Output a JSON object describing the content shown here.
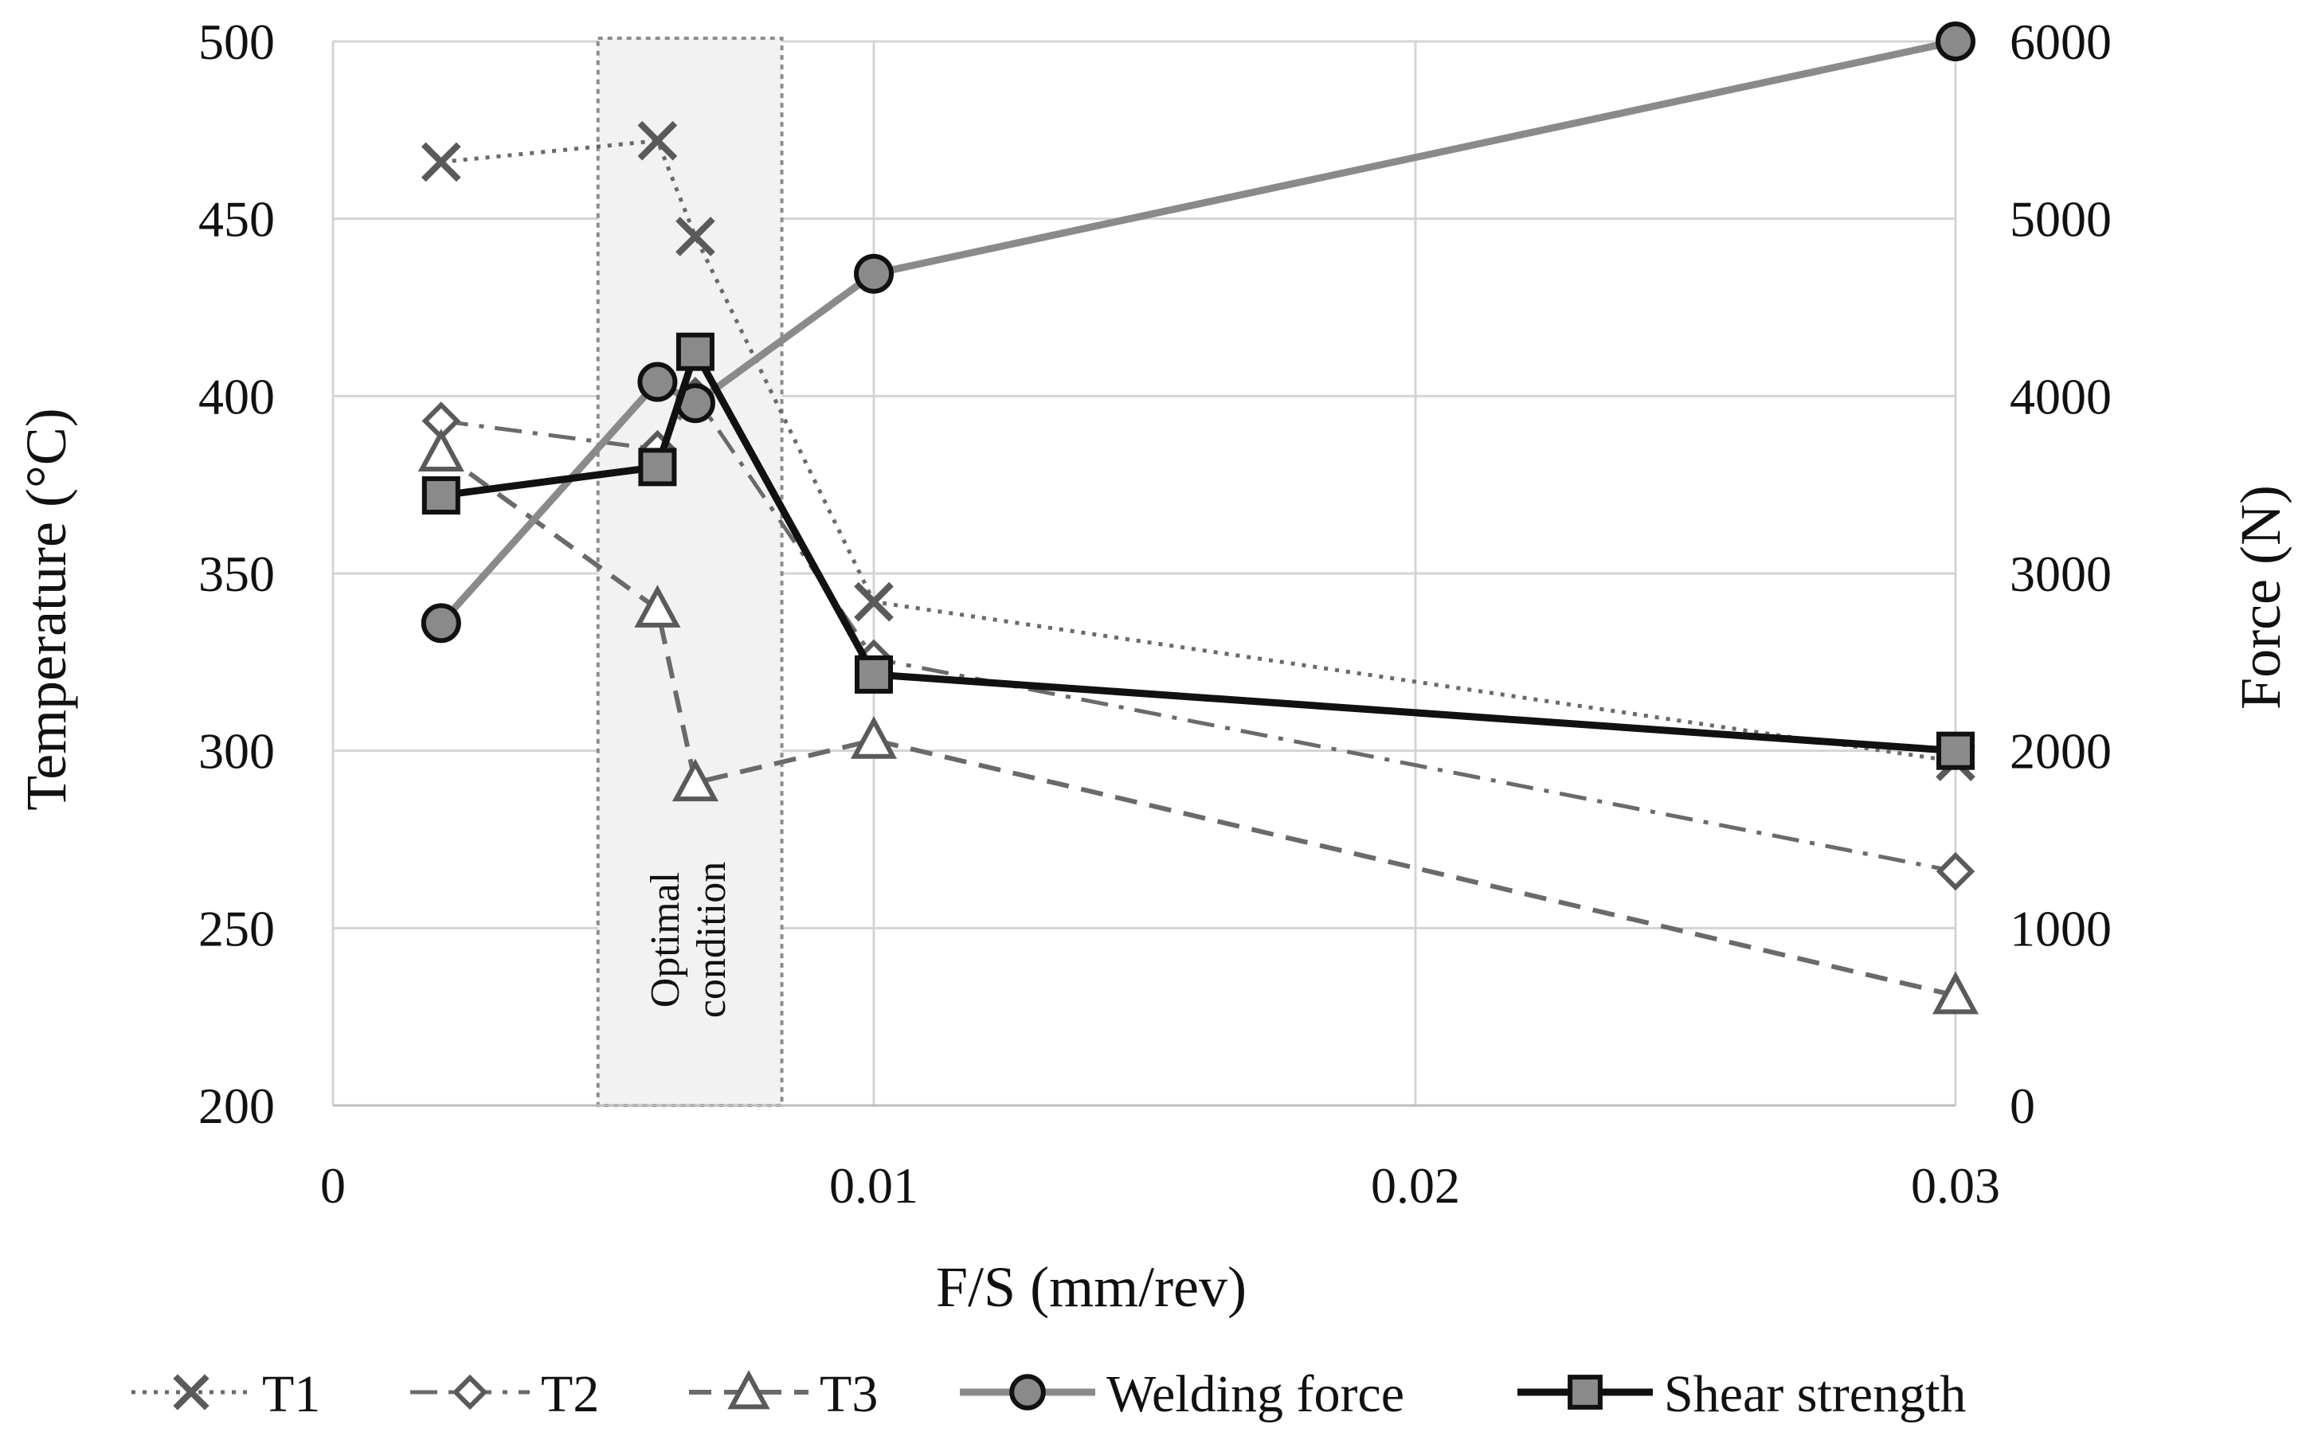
{
  "chart_data": {
    "type": "line",
    "title": "",
    "xlabel": "F/S (mm/rev)",
    "ylabel": "Temperature (°C)",
    "y2label": "Force (N)",
    "x_categories": [
      "0",
      "0.01",
      "0.02",
      "0.03"
    ],
    "x_note": "x axis is a category-like scale: 0, 0.01, 0.02 equally spaced, 0.03 at the fourth gridline",
    "ylim": [
      200,
      500
    ],
    "yticks": [
      "200",
      "250",
      "300",
      "350",
      "400",
      "450",
      "500"
    ],
    "y2lim": [
      0,
      6000
    ],
    "y2ticks": [
      "0",
      "1000",
      "2000",
      "3000",
      "4000",
      "5000",
      "6000"
    ],
    "grid": true,
    "legend_position": "bottom",
    "annotation": {
      "line1": "Optimal",
      "line2": "condition",
      "x_range": [
        0.0049,
        0.0083
      ]
    },
    "series": [
      {
        "name": "T1",
        "axis": "left",
        "style": "dotted",
        "marker": "x",
        "color": "#6a6a6a",
        "points": [
          {
            "x": 0.002,
            "y": 466
          },
          {
            "x": 0.006,
            "y": 472
          },
          {
            "x": 0.0067,
            "y": 445
          },
          {
            "x": 0.01,
            "y": 342
          },
          {
            "x": 0.03,
            "y": 297
          }
        ]
      },
      {
        "name": "T2",
        "axis": "left",
        "style": "dashdot",
        "marker": "diamond",
        "color": "#6a6a6a",
        "points": [
          {
            "x": 0.002,
            "y": 393
          },
          {
            "x": 0.006,
            "y": 385
          },
          {
            "x": 0.0067,
            "y": 400
          },
          {
            "x": 0.01,
            "y": 326
          },
          {
            "x": 0.03,
            "y": 266
          }
        ]
      },
      {
        "name": "T3",
        "axis": "left",
        "style": "dashed",
        "marker": "triangle",
        "color": "#6a6a6a",
        "points": [
          {
            "x": 0.002,
            "y": 384
          },
          {
            "x": 0.006,
            "y": 340
          },
          {
            "x": 0.0067,
            "y": 291
          },
          {
            "x": 0.01,
            "y": 303
          },
          {
            "x": 0.03,
            "y": 231
          }
        ]
      },
      {
        "name": "Welding force",
        "axis": "right",
        "style": "solid",
        "marker": "circle",
        "color": "#8a8a8a",
        "points": [
          {
            "x": 0.002,
            "y": 2720
          },
          {
            "x": 0.006,
            "y": 4080
          },
          {
            "x": 0.0067,
            "y": 3960
          },
          {
            "x": 0.01,
            "y": 4690
          },
          {
            "x": 0.03,
            "y": 6000
          }
        ]
      },
      {
        "name": "Shear strength",
        "axis": "right",
        "style": "solid",
        "marker": "square",
        "color": "#111111",
        "points": [
          {
            "x": 0.002,
            "y": 3440
          },
          {
            "x": 0.006,
            "y": 3600
          },
          {
            "x": 0.0067,
            "y": 4250
          },
          {
            "x": 0.01,
            "y": 2430
          },
          {
            "x": 0.03,
            "y": 2000
          }
        ]
      }
    ]
  }
}
